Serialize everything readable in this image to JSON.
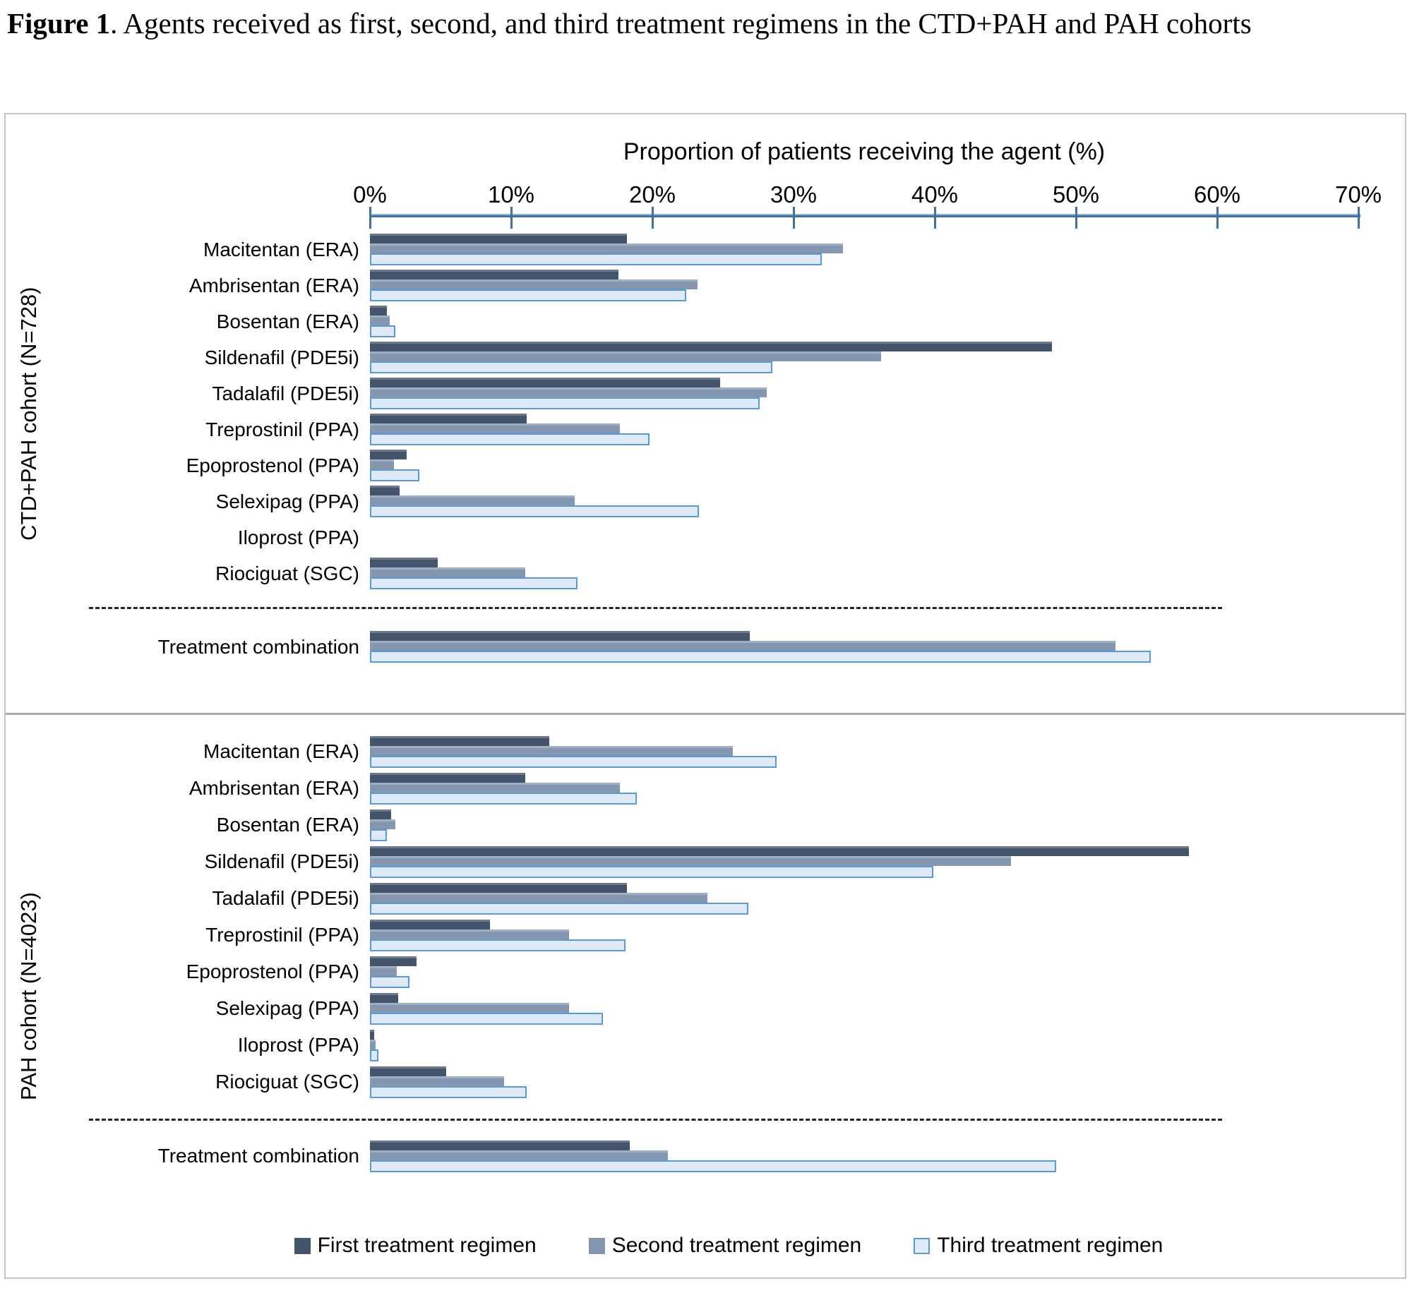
{
  "figure_title": {
    "prefix": "Figure 1",
    "rest": ". Agents received as first, second, and third treatment regimens in the CTD+PAH and PAH cohorts"
  },
  "axis": {
    "title": "Proportion of patients receiving the agent (%)",
    "ticks": [
      "0%",
      "10%",
      "20%",
      "30%",
      "40%",
      "50%",
      "60%",
      "70%"
    ],
    "min": 0,
    "max": 70,
    "color": "#41719c",
    "color_light": "#8fb4d9"
  },
  "legend": [
    {
      "name": "First treatment regimen",
      "color": "#44546a",
      "border": "#44546a"
    },
    {
      "name": "Second treatment regimen",
      "color": "#8496b0",
      "border": "#8496b0"
    },
    {
      "name": "Third treatment regimen",
      "color": "#dfe9f7",
      "border": "#5b9bd5"
    }
  ],
  "styles": {
    "dash_color": "#262626",
    "frame_border": "#c3c3c3",
    "panel_divider": "#ababab"
  },
  "chart_data": {
    "type": "bar",
    "orientation": "horizontal",
    "xlabel": "Proportion of patients receiving the agent (%)",
    "xlim": [
      0,
      70
    ],
    "grid": false,
    "legend_position": "bottom",
    "series_names": [
      "First treatment regimen",
      "Second treatment regimen",
      "Third treatment regimen"
    ],
    "panels": [
      {
        "cohort": "CTD+PAH cohort (N=728)",
        "rows": [
          {
            "label": "Macitentan (ERA)",
            "values": [
              18.2,
              33.5,
              32.0
            ]
          },
          {
            "label": "Ambrisentan (ERA)",
            "values": [
              17.6,
              23.2,
              22.4
            ]
          },
          {
            "label": "Bosentan (ERA)",
            "values": [
              1.2,
              1.4,
              1.8
            ]
          },
          {
            "label": "Sildenafil (PDE5i)",
            "values": [
              48.3,
              36.2,
              28.5
            ]
          },
          {
            "label": "Tadalafil (PDE5i)",
            "values": [
              24.8,
              28.1,
              27.6
            ]
          },
          {
            "label": "Treprostinil (PPA)",
            "values": [
              11.1,
              17.7,
              19.8
            ]
          },
          {
            "label": "Epoprostenol (PPA)",
            "values": [
              2.6,
              1.7,
              3.5
            ]
          },
          {
            "label": "Selexipag (PPA)",
            "values": [
              2.1,
              14.5,
              23.3
            ]
          },
          {
            "label": "Iloprost (PPA)",
            "values": [
              0,
              0,
              0
            ]
          },
          {
            "label": "Riociguat (SGC)",
            "values": [
              4.8,
              11.0,
              14.7
            ]
          }
        ],
        "combination": {
          "label": "Treatment combination",
          "values": [
            26.9,
            52.8,
            55.3
          ]
        }
      },
      {
        "cohort": "PAH cohort (N=4023)",
        "rows": [
          {
            "label": "Macitentan (ERA)",
            "values": [
              12.7,
              25.7,
              28.8
            ]
          },
          {
            "label": "Ambrisentan (ERA)",
            "values": [
              11.0,
              17.7,
              18.9
            ]
          },
          {
            "label": "Bosentan (ERA)",
            "values": [
              1.5,
              1.8,
              1.2
            ]
          },
          {
            "label": "Sildenafil (PDE5i)",
            "values": [
              58.0,
              45.4,
              39.9
            ]
          },
          {
            "label": "Tadalafil (PDE5i)",
            "values": [
              18.2,
              23.9,
              26.8
            ]
          },
          {
            "label": "Treprostinil (PPA)",
            "values": [
              8.5,
              14.1,
              18.1
            ]
          },
          {
            "label": "Epoprostenol (PPA)",
            "values": [
              3.3,
              1.9,
              2.8
            ]
          },
          {
            "label": "Selexipag (PPA)",
            "values": [
              2.0,
              14.1,
              16.5
            ]
          },
          {
            "label": "Iloprost (PPA)",
            "values": [
              0.3,
              0.4,
              0.6
            ]
          },
          {
            "label": "Riociguat (SGC)",
            "values": [
              5.4,
              9.5,
              11.1
            ]
          }
        ],
        "combination": {
          "label": "Treatment combination",
          "values": [
            18.4,
            21.1,
            48.6
          ]
        }
      }
    ]
  }
}
